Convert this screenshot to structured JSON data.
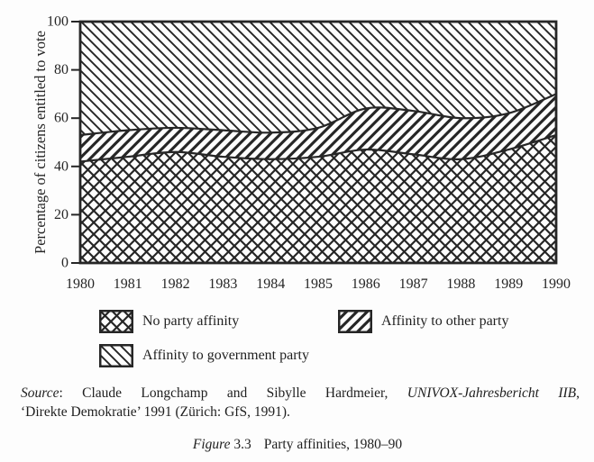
{
  "colors": {
    "ink": "#262626",
    "paper": "#fdfdfd"
  },
  "chart_data": {
    "type": "area",
    "stacked": true,
    "title": "Party affinities, 1980–90",
    "x": [
      1980,
      1981,
      1982,
      1983,
      1984,
      1985,
      1986,
      1987,
      1988,
      1989,
      1990
    ],
    "series": [
      {
        "name": "No party affinity",
        "pattern": "crosshatch",
        "values": [
          42,
          44,
          46,
          44,
          43,
          44,
          47,
          45,
          43,
          47,
          53
        ]
      },
      {
        "name": "Affinity to other party",
        "pattern": "diagonal-up",
        "values": [
          11,
          11,
          10,
          11,
          11,
          12,
          17,
          18,
          17,
          15,
          17
        ]
      },
      {
        "name": "Affinity to government party",
        "pattern": "diagonal-down",
        "values": [
          47,
          45,
          44,
          45,
          46,
          44,
          36,
          37,
          40,
          38,
          30
        ]
      }
    ],
    "ylabel": "Percentage of citizens entitled to vote",
    "xlabel": "",
    "ylim": [
      0,
      100
    ],
    "yticks": [
      0,
      20,
      40,
      60,
      80,
      100
    ],
    "grid": false,
    "legend_position": "below"
  },
  "source": {
    "label": "Source",
    "line1_text": ": Claude Longchamp and Sibylle Hardmeier, ",
    "line1_italic": "UNIVOX-Jahresbericht IIB",
    "line1_end": ",",
    "line2": "‘Direkte Demokratie’ 1991 (Zürich: GfS, 1991)."
  },
  "caption": {
    "label": "Figure",
    "number": "3.3",
    "title": "Party affinities, 1980–90"
  }
}
